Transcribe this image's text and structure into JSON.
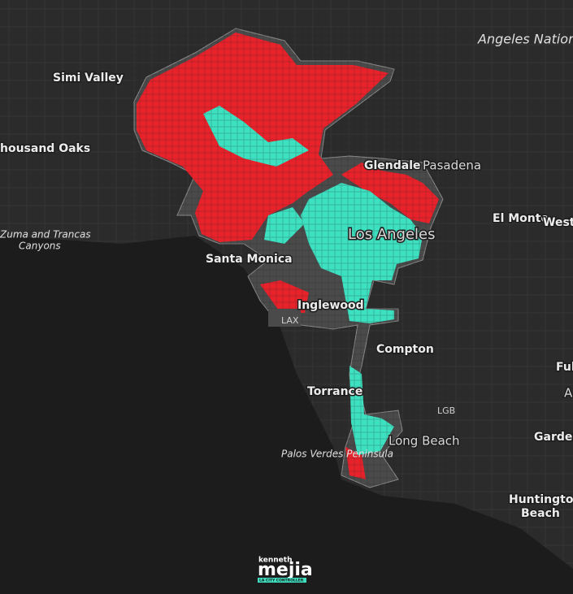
{
  "map": {
    "labels": [
      {
        "text": "Angeles Nationa"
      },
      {
        "text": "Simi Valley"
      },
      {
        "text": "housand Oaks"
      },
      {
        "text": "Zuma and Trancas"
      },
      {
        "text": "Canyons"
      },
      {
        "text": "Glendale"
      },
      {
        "text": "Pasadena"
      },
      {
        "text": "El Monte"
      },
      {
        "text": "West C"
      },
      {
        "text": "Los Angeles"
      },
      {
        "text": "Santa Monica"
      },
      {
        "text": "Inglewood"
      },
      {
        "text": "LAX"
      },
      {
        "text": "Compton"
      },
      {
        "text": "Ful"
      },
      {
        "text": "A"
      },
      {
        "text": "Torrance"
      },
      {
        "text": "LGB"
      },
      {
        "text": "Long Beach"
      },
      {
        "text": "Garden"
      },
      {
        "text": "Palos Verdes Peninsula"
      },
      {
        "text": "Huntington"
      },
      {
        "text": "Beach"
      }
    ]
  },
  "logo": {
    "top": "kenneth",
    "name": "mejia",
    "subtitle": "LA CITY CONTROLLER"
  }
}
